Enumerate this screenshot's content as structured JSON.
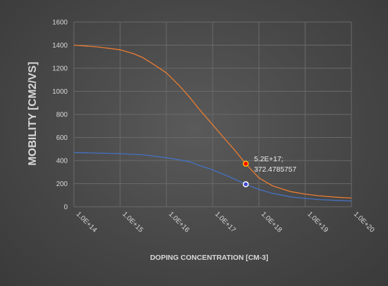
{
  "chart_data": {
    "type": "line",
    "xscale": "log",
    "xlim": [
      100000000000000.0,
      1e+20
    ],
    "ylim": [
      0,
      1600
    ],
    "x_tick_labels": [
      "1.0E+14",
      "1.0E+15",
      "1.0E+16",
      "1.0E+17",
      "1.0E+18",
      "1.0E+19",
      "1.0E+20"
    ],
    "y_tick_labels": [
      "0",
      "200",
      "400",
      "600",
      "800",
      "1000",
      "1200",
      "1400",
      "1600"
    ],
    "xlabel": "DOPING CONCENTRATION [CM-3]",
    "ylabel": "MOBILITY [CM2/VS]",
    "grid": true,
    "legend": "none",
    "series": [
      {
        "color": "#ed7d31",
        "x": [
          100000000000000.0,
          316000000000000.0,
          1000000000000000.0,
          2000000000000000.0,
          3160000000000000.0,
          5000000000000000.0,
          1e+16,
          2e+16,
          3.16e+16,
          5e+16,
          1e+17,
          2e+17,
          3.16e+17,
          5.2e+17,
          1e+18,
          2e+18,
          5e+18,
          1e+19,
          2e+19,
          5e+19,
          1e+20
        ],
        "y": [
          1400,
          1385,
          1360,
          1325,
          1290,
          1240,
          1160,
          1040,
          950,
          850,
          710,
          570,
          480,
          372,
          250,
          180,
          130,
          110,
          95,
          82,
          75
        ]
      },
      {
        "color": "#4472c4",
        "x": [
          100000000000000.0,
          316000000000000.0,
          1000000000000000.0,
          3160000000000000.0,
          1e+16,
          2e+16,
          3.16e+16,
          5e+16,
          1e+17,
          2e+17,
          3.16e+17,
          5.2e+17,
          1e+18,
          2e+18,
          5e+18,
          1e+19,
          2e+19,
          5e+19,
          1e+20
        ],
        "y": [
          470,
          465,
          460,
          450,
          425,
          405,
          390,
          360,
          320,
          270,
          235,
          195,
          150,
          115,
          85,
          72,
          62,
          55,
          50
        ]
      }
    ],
    "highlight_points": [
      {
        "series": 0,
        "x": 5.2e+17,
        "y": 372.4785757,
        "fill": "#ff0000",
        "stroke": "#ffc000"
      },
      {
        "series": 1,
        "x": 5.2e+17,
        "y": 195,
        "fill": "#3f48cc",
        "stroke": "#ffffff"
      }
    ],
    "annotation": {
      "line1": "5.2E+17;",
      "line2": "372.4785757"
    }
  },
  "colors": {
    "grid": "#6a6a6a",
    "tick_text": "#d9d9d9"
  }
}
